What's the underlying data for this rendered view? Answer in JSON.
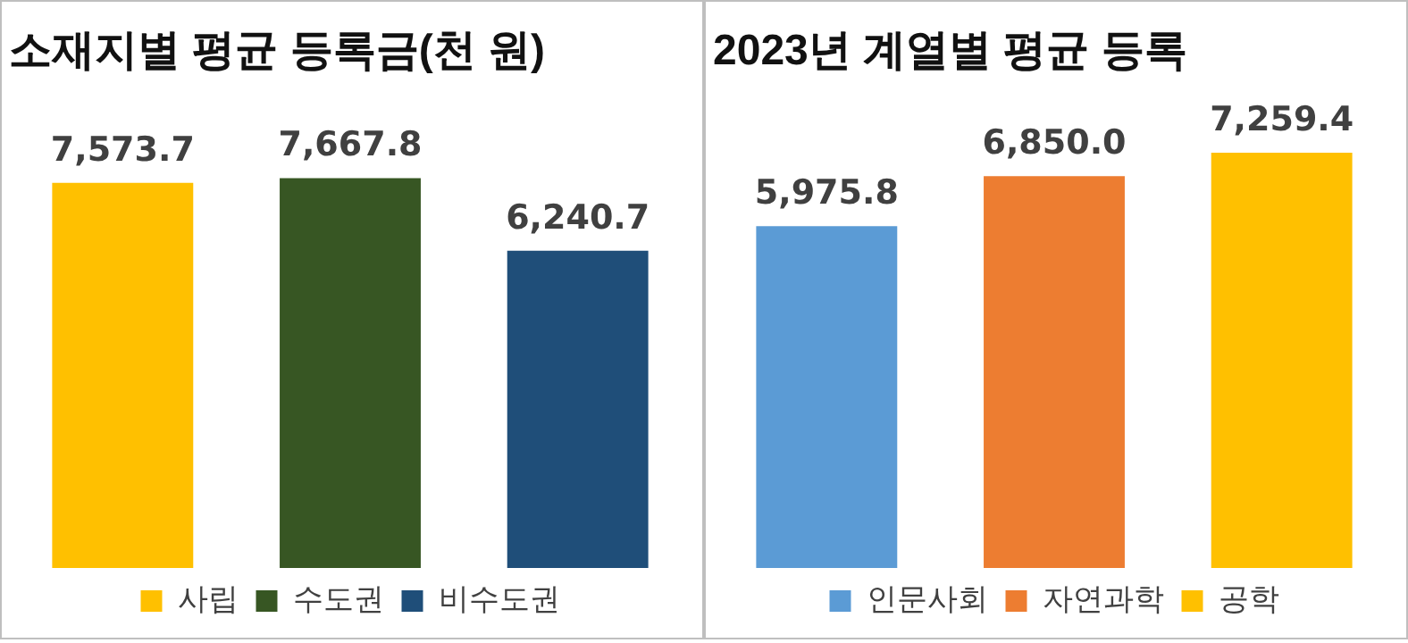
{
  "chart_data": [
    {
      "type": "bar",
      "title": "소재지별 평균 등록금(천 원)",
      "categories": [
        null,
        null,
        null
      ],
      "stacked": true,
      "series": [
        {
          "name": "사립",
          "color": "#ffc000",
          "values": [
            7573.7,
            null,
            null
          ],
          "value_labels": [
            "7,573.7",
            null,
            null
          ]
        },
        {
          "name": "수도권",
          "color": "#375623",
          "values": [
            null,
            7667.8,
            null
          ],
          "value_labels": [
            null,
            "7,667.8",
            null
          ]
        },
        {
          "name": "비수도권",
          "color": "#1f4e79",
          "values": [
            null,
            null,
            6240.7
          ],
          "value_labels": [
            null,
            null,
            "6,240.7"
          ]
        }
      ],
      "legend": "bottom",
      "tick_labels": false
    },
    {
      "type": "bar",
      "title": "2023년 계열별 평균 등록",
      "categories": [
        null,
        null,
        null
      ],
      "stacked": true,
      "series": [
        {
          "name": "인문사회",
          "color": "#5b9bd5",
          "values": [
            5975.8,
            null,
            null
          ],
          "value_labels": [
            "5,975.8",
            null,
            null
          ]
        },
        {
          "name": "자연과학",
          "color": "#ed7d31",
          "values": [
            null,
            6850.0,
            null
          ],
          "value_labels": [
            null,
            "6,850.0",
            null
          ]
        },
        {
          "name": "공학",
          "color": "#ffc000",
          "values": [
            null,
            null,
            7259.4
          ],
          "value_labels": [
            null,
            null,
            "7,259.4"
          ]
        }
      ],
      "legend": "bottom",
      "tick_labels": false
    }
  ]
}
